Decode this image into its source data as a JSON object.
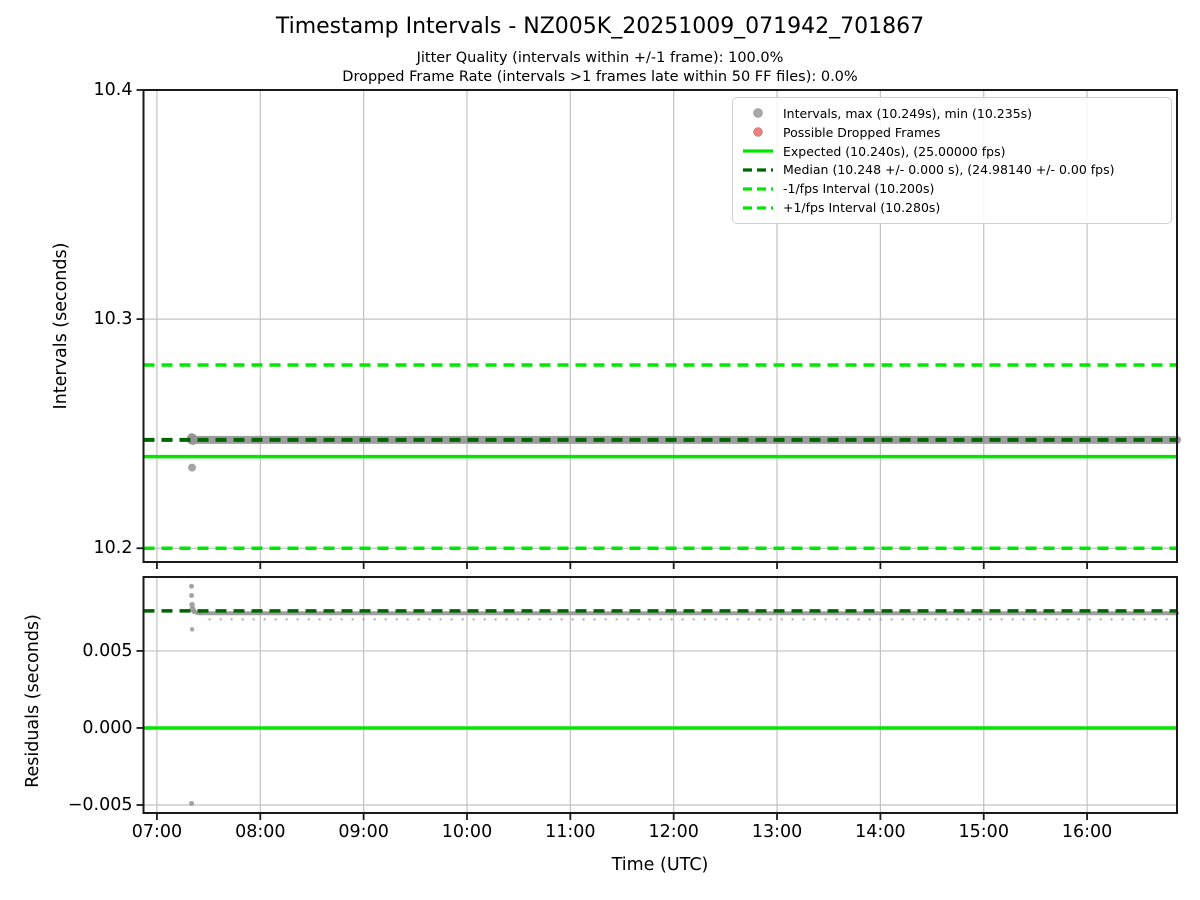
{
  "header": {
    "title": "Timestamp Intervals - NZ005K_20251009_071942_701867",
    "subtitle1": "Jitter Quality (intervals within +/-1 frame): 100.0%",
    "subtitle2": "Dropped Frame Rate (intervals >1 frames late within 50 FF files): 0.0%"
  },
  "stats": {
    "jitter_quality_pct": 100.0,
    "dropped_frame_rate_pct": 0.0,
    "interval_max_s": 10.249,
    "interval_min_s": 10.235,
    "expected_interval_s": 10.24,
    "expected_fps": 25.0,
    "median_interval_s": 10.248,
    "median_fps": 24.9814
  },
  "colors": {
    "expected": "#00e800",
    "fps_band": "#00e800",
    "median": "#006400",
    "scatter": "#949494",
    "dropped": "#f07f7f",
    "grid": "#c2c2c2",
    "spine": "#1a1a1a",
    "legend_border": "#d0d0d0"
  },
  "legend": {
    "items": [
      {
        "marker": "dot",
        "color": "#a8a8a8",
        "label": "Intervals, max (10.249s), min (10.235s)"
      },
      {
        "marker": "dot",
        "color": "#f07f7f",
        "label": "Possible Dropped Frames"
      },
      {
        "marker": "solid",
        "color": "#00e800",
        "label": "Expected (10.240s), (25.00000 fps)"
      },
      {
        "marker": "dashed",
        "color": "#006400",
        "label": "Median (10.248 +/- 0.000 s), (24.98140 +/- 0.00 fps)"
      },
      {
        "marker": "dashed",
        "color": "#00e800",
        "label": "-1/fps Interval (10.200s)"
      },
      {
        "marker": "dashed",
        "color": "#00e800",
        "label": "+1/fps Interval (10.280s)"
      }
    ]
  },
  "axes": {
    "x": {
      "label": "Time (UTC)",
      "ticks": [
        {
          "v": 7,
          "label": "07:00"
        },
        {
          "v": 8,
          "label": "08:00"
        },
        {
          "v": 9,
          "label": "09:00"
        },
        {
          "v": 10,
          "label": "10:00"
        },
        {
          "v": 11,
          "label": "11:00"
        },
        {
          "v": 12,
          "label": "12:00"
        },
        {
          "v": 13,
          "label": "13:00"
        },
        {
          "v": 14,
          "label": "14:00"
        },
        {
          "v": 15,
          "label": "15:00"
        },
        {
          "v": 16,
          "label": "16:00"
        }
      ]
    }
  },
  "chart_data": [
    {
      "type": "scatter",
      "name": "intervals",
      "ylabel": "Intervals (seconds)",
      "grid": true,
      "legend_position": "upper right",
      "xlim": [
        6.87,
        16.87
      ],
      "ylim": [
        10.194,
        10.4
      ],
      "yticks": [
        {
          "v": 10.2,
          "label": "10.2"
        },
        {
          "v": 10.3,
          "label": "10.3"
        },
        {
          "v": 10.4,
          "label": "10.4"
        }
      ],
      "show_xtick_labels": false,
      "hlines": [
        {
          "name": "plus-1fps-interval",
          "y": 10.28,
          "style": "dashed",
          "color_key": "fps_band",
          "width": 3.5
        },
        {
          "name": "minus-1fps-interval",
          "y": 10.2,
          "style": "dashed",
          "color_key": "fps_band",
          "width": 3.5
        },
        {
          "name": "expected-interval",
          "y": 10.24,
          "style": "solid",
          "color_key": "expected",
          "width": 3.5
        },
        {
          "name": "median-interval",
          "y": 10.2473,
          "style": "dashed",
          "color_key": "median",
          "width": 4,
          "top": true
        }
      ],
      "band": {
        "y": 10.2473,
        "x0": 7.335,
        "x1": 16.87,
        "thickness_px": 8
      },
      "points": [
        {
          "x": 7.335,
          "y": 10.2487,
          "r": 3.5
        },
        {
          "x": 7.34,
          "y": 10.2477,
          "r": 5.5
        },
        {
          "x": 7.35,
          "y": 10.2468,
          "r": 4
        },
        {
          "x": 7.34,
          "y": 10.2352,
          "r": 4
        }
      ]
    },
    {
      "type": "scatter",
      "name": "residuals",
      "ylabel": "Residuals (seconds)",
      "grid": true,
      "xlim": [
        6.87,
        16.87
      ],
      "ylim": [
        -0.00552,
        0.0098
      ],
      "yticks": [
        {
          "v": 0.005,
          "label": "0.005"
        },
        {
          "v": 0.0,
          "label": "0.000"
        },
        {
          "v": -0.005,
          "label": "−0.005"
        }
      ],
      "show_xtick_labels": true,
      "hlines": [
        {
          "name": "zero-residual",
          "y": 0.0,
          "style": "solid",
          "color_key": "expected",
          "width": 3.5
        },
        {
          "name": "median-residual",
          "y": 0.0076,
          "style": "dashed",
          "color_key": "median",
          "width": 3.5,
          "top": true
        }
      ],
      "band": {
        "y": 0.00745,
        "x0": 7.42,
        "x1": 16.87,
        "thickness_px": 4
      },
      "speckle": {
        "y": 0.00705,
        "x0": 7.5,
        "x1": 16.87,
        "thickness_px": 2,
        "dash": "2 9"
      },
      "points": [
        {
          "x": 7.335,
          "y": 0.0092,
          "r": 2.5
        },
        {
          "x": 7.335,
          "y": 0.0086,
          "r": 2.5
        },
        {
          "x": 7.34,
          "y": 0.008,
          "r": 2.8
        },
        {
          "x": 7.345,
          "y": 0.0077,
          "r": 3.2
        },
        {
          "x": 7.36,
          "y": 0.00755,
          "r": 2.5
        },
        {
          "x": 7.385,
          "y": 0.00748,
          "r": 2.2
        },
        {
          "x": 7.41,
          "y": 0.00746,
          "r": 2.2
        },
        {
          "x": 7.34,
          "y": 0.0064,
          "r": 2.2
        },
        {
          "x": 7.335,
          "y": -0.0049,
          "r": 2.5
        }
      ]
    }
  ]
}
